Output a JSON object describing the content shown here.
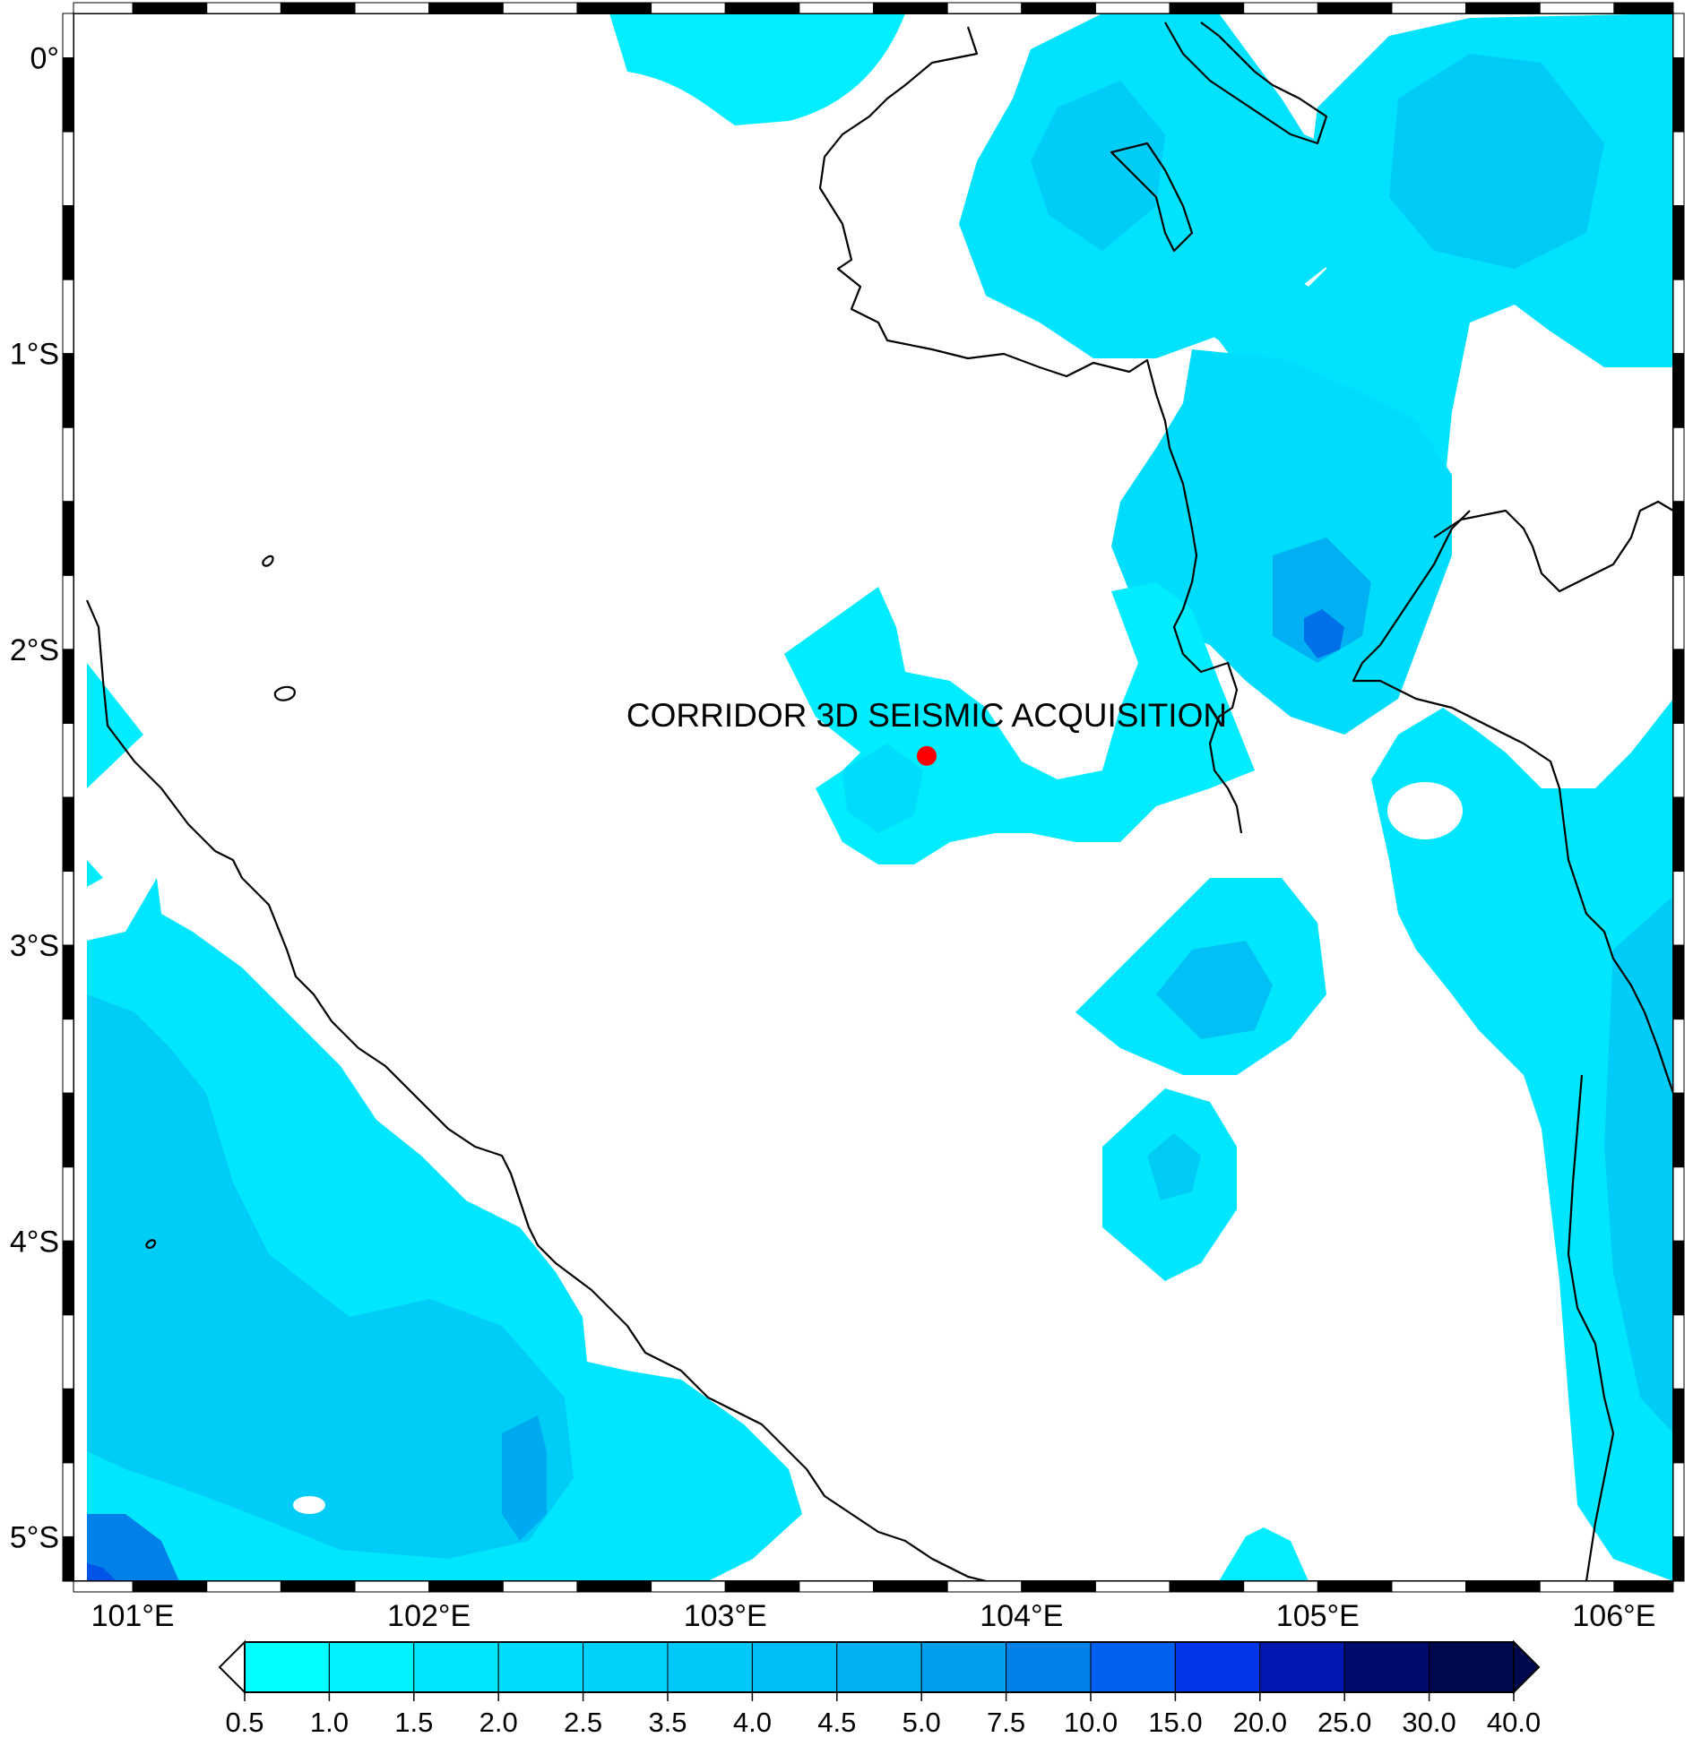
{
  "map": {
    "extent": {
      "lon_min": 100.8,
      "lon_max": 106.2,
      "lat_min": -5.15,
      "lat_max": 0.15
    },
    "lon_ticks": [
      {
        "value": 101,
        "label": "101°E"
      },
      {
        "value": 102,
        "label": "102°E"
      },
      {
        "value": 103,
        "label": "103°E"
      },
      {
        "value": 104,
        "label": "104°E"
      },
      {
        "value": 105,
        "label": "105°E"
      },
      {
        "value": 106,
        "label": "106°E"
      }
    ],
    "lat_ticks": [
      {
        "value": 0,
        "label": "0°"
      },
      {
        "value": -1,
        "label": "1°S"
      },
      {
        "value": -2,
        "label": "2°S"
      },
      {
        "value": -3,
        "label": "3°S"
      },
      {
        "value": -4,
        "label": "4°S"
      },
      {
        "value": -5,
        "label": "5°S"
      }
    ],
    "site": {
      "label": "CORRIDOR 3D SEISMIC ACQUISITION",
      "lon": 103.68,
      "lat": -2.36,
      "marker_color": "#ff0000"
    },
    "coastline_color": "#000000",
    "background_color": "#ffffff"
  },
  "colorbar": {
    "boundaries": [
      "0.5",
      "1.0",
      "1.5",
      "2.0",
      "2.5",
      "3.5",
      "4.0",
      "4.5",
      "5.0",
      "7.5",
      "10.0",
      "15.0",
      "20.0",
      "25.0",
      "30.0",
      "40.0"
    ],
    "colors": [
      "#00ffff",
      "#00f2ff",
      "#00e6ff",
      "#00dcfc",
      "#00d2fa",
      "#00c8f8",
      "#00bdf5",
      "#00b2f2",
      "#00a0ee",
      "#0082ea",
      "#0060f0",
      "#0035e8",
      "#0018b0",
      "#000a6e",
      "#00084e"
    ],
    "under_color": "#ffffff",
    "over_color": "#000850"
  }
}
